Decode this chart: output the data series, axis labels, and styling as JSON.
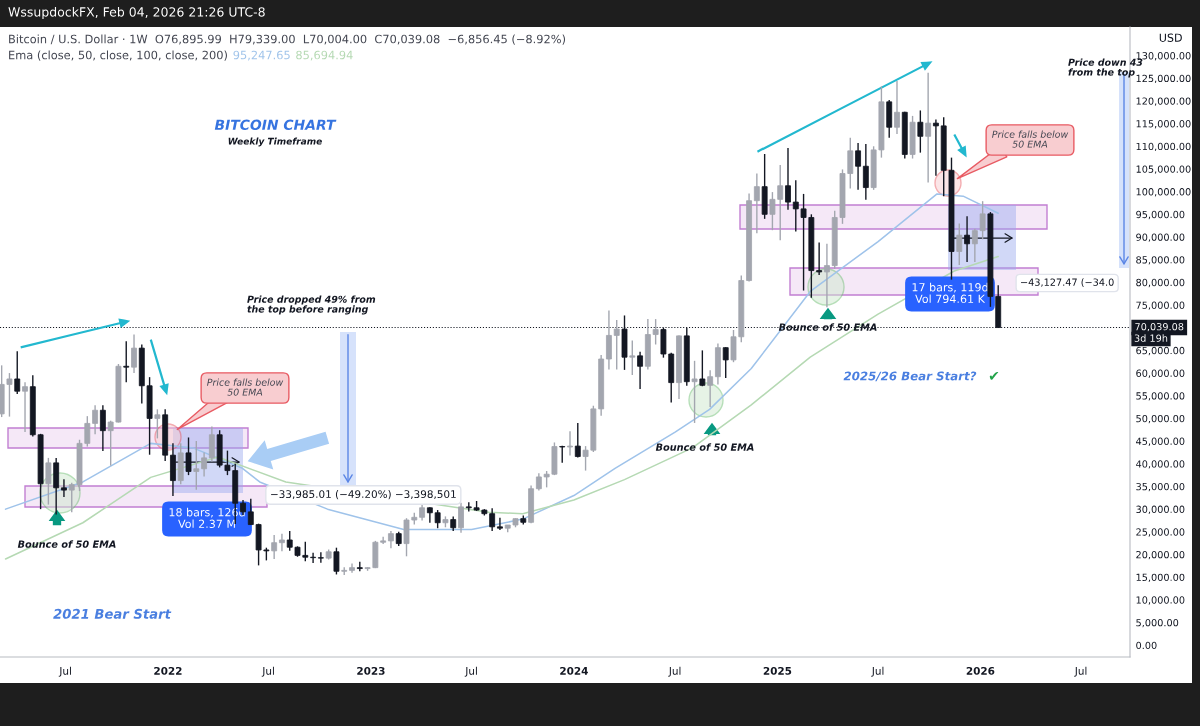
{
  "chart_data": {
    "type": "candlestick",
    "title": "BITCOIN CHART",
    "subtitle": "Weekly Timeframe",
    "ylabel": "USD",
    "x": [
      "2021-03-08",
      "2021-03-22",
      "2021-04-05",
      "2021-04-19",
      "2021-05-03",
      "2021-05-17",
      "2021-05-31",
      "2021-06-14",
      "2021-06-28",
      "2021-07-12",
      "2021-07-26",
      "2021-08-09",
      "2021-08-23",
      "2021-09-06",
      "2021-09-20",
      "2021-10-04",
      "2021-10-18",
      "2021-11-01",
      "2021-11-15",
      "2021-11-29",
      "2021-12-13",
      "2021-12-27",
      "2022-01-10",
      "2022-01-24",
      "2022-02-07",
      "2022-02-21",
      "2022-03-07",
      "2022-03-21",
      "2022-04-04",
      "2022-04-18",
      "2022-05-02",
      "2022-05-16",
      "2022-05-30",
      "2022-06-13",
      "2022-06-27",
      "2022-07-11",
      "2022-07-25",
      "2022-08-08",
      "2022-08-22",
      "2022-09-05",
      "2022-09-19",
      "2022-10-03",
      "2022-10-17",
      "2022-10-31",
      "2022-11-14",
      "2022-11-28",
      "2022-12-12",
      "2022-12-26",
      "2023-01-09",
      "2023-01-23",
      "2023-02-06",
      "2023-02-20",
      "2023-03-06",
      "2023-03-20",
      "2023-04-03",
      "2023-04-17",
      "2023-05-01",
      "2023-05-15",
      "2023-05-29",
      "2023-06-12",
      "2023-06-26",
      "2023-07-10",
      "2023-07-24",
      "2023-08-07",
      "2023-08-21",
      "2023-09-04",
      "2023-09-18",
      "2023-10-02",
      "2023-10-16",
      "2023-10-30",
      "2023-11-13",
      "2023-11-27",
      "2023-12-11",
      "2023-12-25",
      "2024-01-08",
      "2024-01-22",
      "2024-02-05",
      "2024-02-19",
      "2024-03-04",
      "2024-03-18",
      "2024-04-01",
      "2024-04-15",
      "2024-04-29",
      "2024-05-13",
      "2024-05-27",
      "2024-06-10",
      "2024-06-24",
      "2024-07-08",
      "2024-07-22",
      "2024-08-05",
      "2024-08-19",
      "2024-09-02",
      "2024-09-16",
      "2024-09-30",
      "2024-10-14",
      "2024-10-28",
      "2024-11-11",
      "2024-11-25",
      "2024-12-09",
      "2024-12-23",
      "2025-01-06",
      "2025-01-20",
      "2025-02-03",
      "2025-02-17",
      "2025-03-03",
      "2025-03-17",
      "2025-03-31",
      "2025-04-14",
      "2025-04-28",
      "2025-05-12",
      "2025-05-26",
      "2025-06-09",
      "2025-06-23",
      "2025-07-07",
      "2025-07-21",
      "2025-08-04",
      "2025-08-18",
      "2025-09-01",
      "2025-09-15",
      "2025-09-29",
      "2025-10-13",
      "2025-10-27",
      "2025-11-10",
      "2025-11-24",
      "2025-12-08",
      "2025-12-22",
      "2026-01-05",
      "2026-01-19",
      "2026-02-02"
    ],
    "ohlc": [
      [
        51000,
        61700,
        50300,
        57500
      ],
      [
        57500,
        60000,
        50400,
        58700
      ],
      [
        58700,
        64800,
        55400,
        56000
      ],
      [
        56000,
        58000,
        47000,
        57000
      ],
      [
        57000,
        59500,
        46000,
        46400
      ],
      [
        46400,
        46600,
        30000,
        35600
      ],
      [
        35600,
        41300,
        31000,
        40200
      ],
      [
        40200,
        41300,
        28800,
        34700
      ],
      [
        34700,
        36600,
        32700,
        34200
      ],
      [
        34200,
        35800,
        29300,
        35400
      ],
      [
        35400,
        45300,
        34000,
        44500
      ],
      [
        44500,
        50500,
        43800,
        48900
      ],
      [
        48900,
        52900,
        46500,
        51800
      ],
      [
        51800,
        52900,
        42800,
        47300
      ],
      [
        47300,
        49500,
        39600,
        49200
      ],
      [
        49200,
        62000,
        49100,
        61500
      ],
      [
        61500,
        67000,
        58000,
        61300
      ],
      [
        61300,
        68500,
        60000,
        65500
      ],
      [
        65500,
        66300,
        53300,
        57200
      ],
      [
        57200,
        59100,
        42000,
        50000
      ],
      [
        50000,
        52000,
        45600,
        50800
      ],
      [
        50800,
        52000,
        40600,
        41900
      ],
      [
        41900,
        44500,
        32900,
        36300
      ],
      [
        36300,
        44500,
        35500,
        42400
      ],
      [
        42400,
        45800,
        37500,
        38300
      ],
      [
        38300,
        45000,
        34300,
        38900
      ],
      [
        38900,
        42500,
        37200,
        41300
      ],
      [
        41300,
        48200,
        40500,
        46400
      ],
      [
        46400,
        47400,
        39200,
        39700
      ],
      [
        39700,
        42900,
        37500,
        38500
      ],
      [
        38500,
        40000,
        26700,
        31300
      ],
      [
        31300,
        32000,
        28700,
        29400
      ],
      [
        29400,
        32300,
        26500,
        26600
      ],
      [
        26600,
        26800,
        17600,
        21000
      ],
      [
        21000,
        21500,
        18700,
        20800
      ],
      [
        20800,
        24300,
        19000,
        22600
      ],
      [
        22600,
        24600,
        20700,
        23200
      ],
      [
        23200,
        25200,
        20800,
        21600
      ],
      [
        21600,
        21800,
        19500,
        19800
      ],
      [
        19800,
        22800,
        18500,
        19400
      ],
      [
        19400,
        20400,
        18100,
        19300
      ],
      [
        19300,
        20500,
        18200,
        19200
      ],
      [
        19200,
        21100,
        18900,
        20600
      ],
      [
        20600,
        21500,
        15600,
        16300
      ],
      [
        16300,
        17200,
        15500,
        16500
      ],
      [
        16500,
        18000,
        16000,
        17100
      ],
      [
        17100,
        18400,
        16300,
        16900
      ],
      [
        16900,
        17200,
        16400,
        17100
      ],
      [
        17100,
        23000,
        17000,
        22700
      ],
      [
        22700,
        23900,
        22300,
        23000
      ],
      [
        23000,
        25200,
        21400,
        24600
      ],
      [
        24600,
        25000,
        21900,
        22400
      ],
      [
        22400,
        28000,
        19600,
        27600
      ],
      [
        27600,
        29200,
        26600,
        28200
      ],
      [
        28200,
        31000,
        27500,
        30300
      ],
      [
        30300,
        30400,
        27000,
        29200
      ],
      [
        29200,
        29800,
        25800,
        27000
      ],
      [
        27000,
        28400,
        26000,
        27700
      ],
      [
        27700,
        28400,
        25200,
        25900
      ],
      [
        25900,
        31400,
        24800,
        30500
      ],
      [
        30500,
        31500,
        29500,
        30300
      ],
      [
        30300,
        31800,
        29600,
        29800
      ],
      [
        29800,
        30000,
        28600,
        29000
      ],
      [
        29000,
        30200,
        25200,
        26100
      ],
      [
        26100,
        28100,
        25400,
        25800
      ],
      [
        25800,
        26500,
        24900,
        26500
      ],
      [
        26500,
        28000,
        26000,
        27900
      ],
      [
        27900,
        28600,
        26600,
        27100
      ],
      [
        27100,
        35200,
        26900,
        34500
      ],
      [
        34500,
        37900,
        34100,
        37100
      ],
      [
        37100,
        38400,
        34800,
        37700
      ],
      [
        37700,
        44700,
        37500,
        43800
      ],
      [
        43800,
        44000,
        40200,
        43700
      ],
      [
        43700,
        47200,
        41800,
        43900
      ],
      [
        43900,
        49000,
        41400,
        41600
      ],
      [
        41600,
        43900,
        38500,
        43000
      ],
      [
        43000,
        52800,
        42600,
        52100
      ],
      [
        52100,
        64000,
        50600,
        63100
      ],
      [
        63100,
        73800,
        60800,
        68300
      ],
      [
        68300,
        71700,
        60800,
        69700
      ],
      [
        69700,
        72700,
        60700,
        63500
      ],
      [
        63500,
        67200,
        59600,
        63800
      ],
      [
        63800,
        64700,
        56500,
        61500
      ],
      [
        61500,
        71900,
        60800,
        68500
      ],
      [
        68500,
        71900,
        66300,
        69600
      ],
      [
        69600,
        70000,
        63400,
        64200
      ],
      [
        64200,
        64500,
        53500,
        57900
      ],
      [
        57900,
        68300,
        54300,
        68200
      ],
      [
        68200,
        70000,
        57200,
        58100
      ],
      [
        58100,
        62700,
        49000,
        58700
      ],
      [
        58700,
        65000,
        57100,
        57300
      ],
      [
        57300,
        60600,
        52500,
        59200
      ],
      [
        59200,
        66500,
        57500,
        65600
      ],
      [
        65600,
        65700,
        58900,
        62900
      ],
      [
        62900,
        69500,
        62400,
        68000
      ],
      [
        68000,
        81500,
        66800,
        80400
      ],
      [
        80400,
        99600,
        80200,
        98000
      ],
      [
        98000,
        104000,
        90800,
        101100
      ],
      [
        101100,
        108300,
        94000,
        95000
      ],
      [
        95000,
        99900,
        91500,
        98300
      ],
      [
        98300,
        105900,
        89300,
        101300
      ],
      [
        101300,
        109600,
        96000,
        97700
      ],
      [
        97700,
        102500,
        91200,
        96200
      ],
      [
        96200,
        99500,
        78200,
        94300
      ],
      [
        94300,
        95000,
        76600,
        82600
      ],
      [
        82600,
        88800,
        81600,
        82300
      ],
      [
        82300,
        88500,
        74500,
        83700
      ],
      [
        83700,
        95800,
        83000,
        94300
      ],
      [
        94300,
        104900,
        92900,
        104000
      ],
      [
        104000,
        111900,
        100700,
        109000
      ],
      [
        109000,
        110700,
        100400,
        105600
      ],
      [
        105600,
        110500,
        98200,
        100900
      ],
      [
        100900,
        110000,
        100400,
        109200
      ],
      [
        109200,
        123200,
        107500,
        119800
      ],
      [
        119800,
        120200,
        111900,
        114200
      ],
      [
        114200,
        124400,
        112700,
        117500
      ],
      [
        117500,
        117600,
        107300,
        108200
      ],
      [
        108200,
        116700,
        107300,
        115300
      ],
      [
        115300,
        117900,
        108600,
        112200
      ],
      [
        112200,
        126200,
        102000,
        115100
      ],
      [
        115100,
        115900,
        103500,
        114500
      ],
      [
        114500,
        116400,
        99000,
        104700
      ],
      [
        104700,
        107500,
        80600,
        86800
      ],
      [
        86800,
        93000,
        83800,
        90400
      ],
      [
        90400,
        94600,
        84500,
        88500
      ],
      [
        88500,
        91800,
        84500,
        91400
      ],
      [
        91400,
        97900,
        89500,
        95100
      ],
      [
        95100,
        95500,
        74600,
        76900
      ],
      [
        76895.99,
        79339.0,
        70004.0,
        70039.08
      ]
    ],
    "colors": [
      "#a3a6af",
      "#a3a6af",
      "#131722",
      "#a3a6af",
      "#131722",
      "#131722",
      "#a3a6af",
      "#131722",
      "#131722",
      "#a3a6af",
      "#a3a6af",
      "#a3a6af",
      "#a3a6af",
      "#131722",
      "#a3a6af",
      "#a3a6af",
      "#131722",
      "#a3a6af",
      "#131722",
      "#131722",
      "#a3a6af",
      "#131722",
      "#131722",
      "#a3a6af",
      "#131722",
      "#a3a6af",
      "#a3a6af",
      "#a3a6af",
      "#131722",
      "#131722",
      "#131722",
      "#131722",
      "#131722",
      "#131722",
      "#131722",
      "#a3a6af",
      "#a3a6af",
      "#131722",
      "#131722",
      "#131722",
      "#131722",
      "#131722",
      "#a3a6af",
      "#131722",
      "#a3a6af",
      "#a3a6af",
      "#131722",
      "#a3a6af",
      "#a3a6af",
      "#a3a6af",
      "#a3a6af",
      "#131722",
      "#a3a6af",
      "#a3a6af",
      "#a3a6af",
      "#131722",
      "#131722",
      "#a3a6af",
      "#131722",
      "#a3a6af",
      "#131722",
      "#131722",
      "#131722",
      "#131722",
      "#131722",
      "#a3a6af",
      "#a3a6af",
      "#131722",
      "#a3a6af",
      "#a3a6af",
      "#a3a6af",
      "#a3a6af",
      "#131722",
      "#a3a6af",
      "#131722",
      "#a3a6af",
      "#a3a6af",
      "#a3a6af",
      "#a3a6af",
      "#a3a6af",
      "#131722",
      "#a3a6af",
      "#131722",
      "#a3a6af",
      "#a3a6af",
      "#131722",
      "#131722",
      "#a3a6af",
      "#131722",
      "#a3a6af",
      "#131722",
      "#a3a6af",
      "#a3a6af",
      "#131722",
      "#a3a6af",
      "#a3a6af",
      "#a3a6af",
      "#a3a6af",
      "#131722",
      "#a3a6af",
      "#a3a6af",
      "#131722",
      "#131722",
      "#131722",
      "#131722",
      "#131722",
      "#a3a6af",
      "#a3a6af",
      "#a3a6af",
      "#a3a6af",
      "#131722",
      "#131722",
      "#a3a6af",
      "#a3a6af",
      "#131722",
      "#a3a6af",
      "#131722",
      "#a3a6af",
      "#131722",
      "#a3a6af",
      "#131722",
      "#131722",
      "#131722",
      "#a3a6af",
      "#131722",
      "#a3a6af",
      "#a3a6af",
      "#131722",
      "#131722"
    ],
    "series": [
      {
        "type": "line",
        "color": "#9fc3ea",
        "x": [
          "2021-03-15",
          "2021-08-01",
          "2021-12-01",
          "2022-02-15",
          "2022-05-15",
          "2022-06-15",
          "2022-10-15",
          "2023-03-01",
          "2023-07-01",
          "2023-10-01",
          "2024-01-01",
          "2024-03-15",
          "2024-07-01",
          "2024-09-01",
          "2024-11-15",
          "2025-03-01",
          "2025-07-01",
          "2025-10-15",
          "2025-12-01",
          "2026-02-02"
        ],
        "values": [
          30000,
          36000,
          44500,
          43500,
          39000,
          36000,
          30000,
          25500,
          25500,
          27800,
          33000,
          39000,
          47000,
          52000,
          61000,
          78000,
          89000,
          99500,
          99000,
          95247.65
        ]
      },
      {
        "type": "line",
        "color": "#b5d9b3",
        "x": [
          "2021-03-15",
          "2021-08-01",
          "2021-12-01",
          "2022-04-01",
          "2022-08-01",
          "2023-08-01",
          "2023-10-01",
          "2024-01-01",
          "2024-04-01",
          "2024-08-01",
          "2024-11-15",
          "2025-03-01",
          "2025-07-01",
          "2025-11-15",
          "2026-02-02"
        ],
        "values": [
          19000,
          27000,
          37000,
          41500,
          36000,
          29300,
          29000,
          32000,
          36500,
          43500,
          53000,
          63500,
          73000,
          82500,
          85694.94
        ]
      }
    ],
    "xlim": [
      "2021-03-05",
      "2026-09-27"
    ],
    "xticks": [
      {
        "value": "2021-07-01",
        "label": "Jul"
      },
      {
        "value": "2022-01-01",
        "label": "2022"
      },
      {
        "value": "2022-07-01",
        "label": "Jul"
      },
      {
        "value": "2023-01-01",
        "label": "2023"
      },
      {
        "value": "2023-07-01",
        "label": "Jul"
      },
      {
        "value": "2024-01-01",
        "label": "2024"
      },
      {
        "value": "2024-07-01",
        "label": "Jul"
      },
      {
        "value": "2025-01-01",
        "label": "2025"
      },
      {
        "value": "2025-07-01",
        "label": "Jul"
      },
      {
        "value": "2026-01-01",
        "label": "2026"
      },
      {
        "value": "2026-07-01",
        "label": "Jul"
      }
    ],
    "ylim": [
      -2600,
      136300
    ],
    "yticks": [
      {
        "value": 0,
        "label": "0.00"
      },
      {
        "value": 5000,
        "label": "5,000.00"
      },
      {
        "value": 10000,
        "label": "10,000.00"
      },
      {
        "value": 15000,
        "label": "15,000.00"
      },
      {
        "value": 20000,
        "label": "20,000.00"
      },
      {
        "value": 25000,
        "label": "25,000.00"
      },
      {
        "value": 30000,
        "label": "30,000.00"
      },
      {
        "value": 35000,
        "label": "35,000.00"
      },
      {
        "value": 40000,
        "label": "40,000.00"
      },
      {
        "value": 45000,
        "label": "45,000.00"
      },
      {
        "value": 50000,
        "label": "50,000.00"
      },
      {
        "value": 55000,
        "label": "55,000.00"
      },
      {
        "value": 60000,
        "label": "60,000.00"
      },
      {
        "value": 65000,
        "label": "65,000.00"
      },
      {
        "value": 75000,
        "label": "75,000.00"
      },
      {
        "value": 80000,
        "label": "80,000.00"
      },
      {
        "value": 85000,
        "label": "85,000.00"
      },
      {
        "value": 90000,
        "label": "90,000.00"
      },
      {
        "value": 95000,
        "label": "95,000.00"
      },
      {
        "value": 100000,
        "label": "100,000.00"
      },
      {
        "value": 105000,
        "label": "105,000.00"
      },
      {
        "value": 110000,
        "label": "110,000.00"
      },
      {
        "value": 115000,
        "label": "115,000.00"
      },
      {
        "value": 120000,
        "label": "120,000.00"
      },
      {
        "value": 125000,
        "label": "125,000.00"
      },
      {
        "value": 130000,
        "label": "130,000.00"
      }
    ],
    "ref_lines": [
      {
        "axis": "y",
        "value": 70039.08,
        "label": "70,039.08",
        "line_style": "dotted",
        "color": "#131722"
      }
    ],
    "annotations": [
      "WssupdockFX, Feb 04, 2026 21:26 UTC-8",
      "Bitcoin / U.S. Dollar · 1W  O76,895.99  H79,339.00  L70,004.00  C70,039.08  −6,856.45 (−8.92%)",
      "Ema (close, 50, close, 100, close, 200)",
      "95,247.65",
      "85,694.94",
      "Price dropped 49% from\nthe top before ranging",
      "Price down 43\nfrom the top",
      "2021 Bear Start",
      "2025/26 Bear Start?",
      "✔",
      "Bounce of 50 EMA",
      "Bounce of 50 EMA",
      "Bounce of 50 EMA",
      "Price falls below\n50 EMA",
      "Price falls below\n50 EMA",
      "18 bars, 126d\nVol 2.37 M",
      "17 bars, 119d\nVol 794.61 K",
      "−33,985.01 (−49.20%) −3,398,501",
      "−43,127.47 (−34.0",
      "3d 19h"
    ]
  }
}
